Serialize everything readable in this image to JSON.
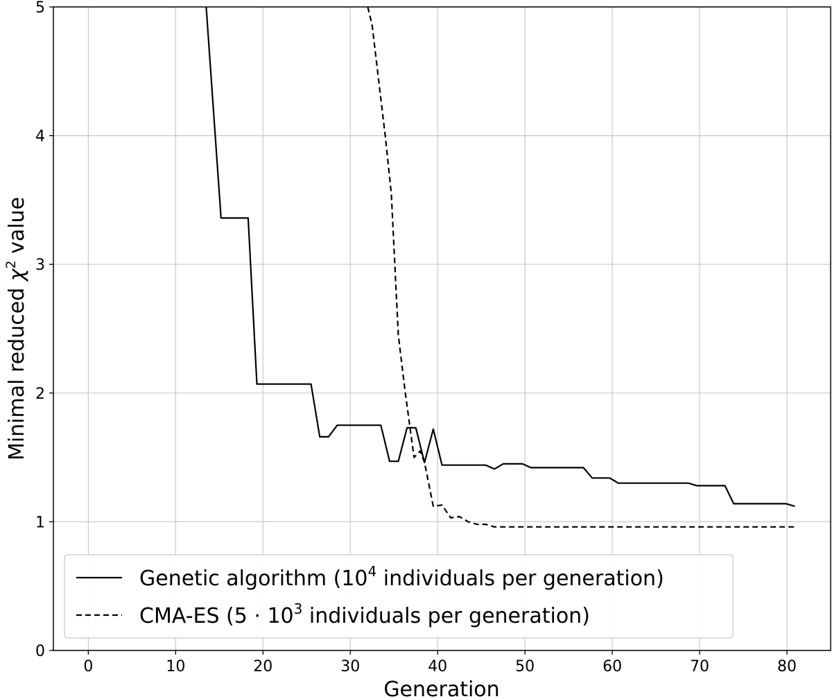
{
  "chart_data": {
    "type": "line",
    "title": "",
    "xlabel": "Generation",
    "ylabel": {
      "prefix": "Minimal reduced ",
      "symbol": "χ",
      "sup": "2",
      "suffix": " value"
    },
    "xlim": [
      -4,
      85
    ],
    "ylim": [
      0,
      5
    ],
    "xticks": [
      0,
      10,
      20,
      30,
      40,
      50,
      60,
      70,
      80
    ],
    "yticks": [
      0,
      1,
      2,
      3,
      4,
      5
    ],
    "grid": true,
    "legend_position": "lower-left",
    "series": [
      {
        "name": "Genetic algorithm (10^4 individuals per generation)",
        "legend": {
          "pre": "Genetic algorithm (10",
          "sup": "4",
          "post": " individuals per generation)"
        },
        "style": "solid",
        "color": "#000000",
        "x": [
          13.5,
          15.2,
          18.3,
          19.3,
          25.5,
          26.5,
          27.5,
          28.5,
          33.5,
          34.5,
          35.5,
          36.5,
          37.5,
          38.5,
          39.5,
          40.5,
          45.5,
          46.5,
          47.5,
          49.7,
          50.7,
          56.7,
          57.7,
          59.7,
          60.7,
          68.7,
          69.7,
          72.9,
          73.9,
          79.9,
          80.9
        ],
        "y": [
          5.0,
          3.36,
          3.36,
          2.07,
          2.07,
          1.66,
          1.66,
          1.75,
          1.75,
          1.47,
          1.47,
          1.73,
          1.73,
          1.46,
          1.72,
          1.44,
          1.44,
          1.41,
          1.45,
          1.45,
          1.42,
          1.42,
          1.34,
          1.34,
          1.3,
          1.3,
          1.28,
          1.28,
          1.14,
          1.14,
          1.12
        ]
      },
      {
        "name": "CMA-ES (5·10^3 individuals per generation)",
        "legend": {
          "pre": "CMA-ES (5 · 10",
          "sup": "3",
          "post": " individuals per generation)"
        },
        "style": "dashed",
        "color": "#000000",
        "x": [
          32.0,
          32.5,
          33.3,
          34.0,
          34.7,
          35.5,
          36.3,
          37.3,
          38.0,
          38.5,
          39.5,
          40.5,
          41.5,
          42.5,
          43.5,
          44.5,
          45.5,
          46.5,
          48.0,
          80.9
        ],
        "y": [
          5.0,
          4.86,
          4.4,
          4.0,
          3.55,
          2.45,
          2.0,
          1.5,
          1.55,
          1.46,
          1.12,
          1.13,
          1.03,
          1.04,
          1.0,
          0.98,
          0.98,
          0.96,
          0.96,
          0.96
        ]
      }
    ]
  }
}
